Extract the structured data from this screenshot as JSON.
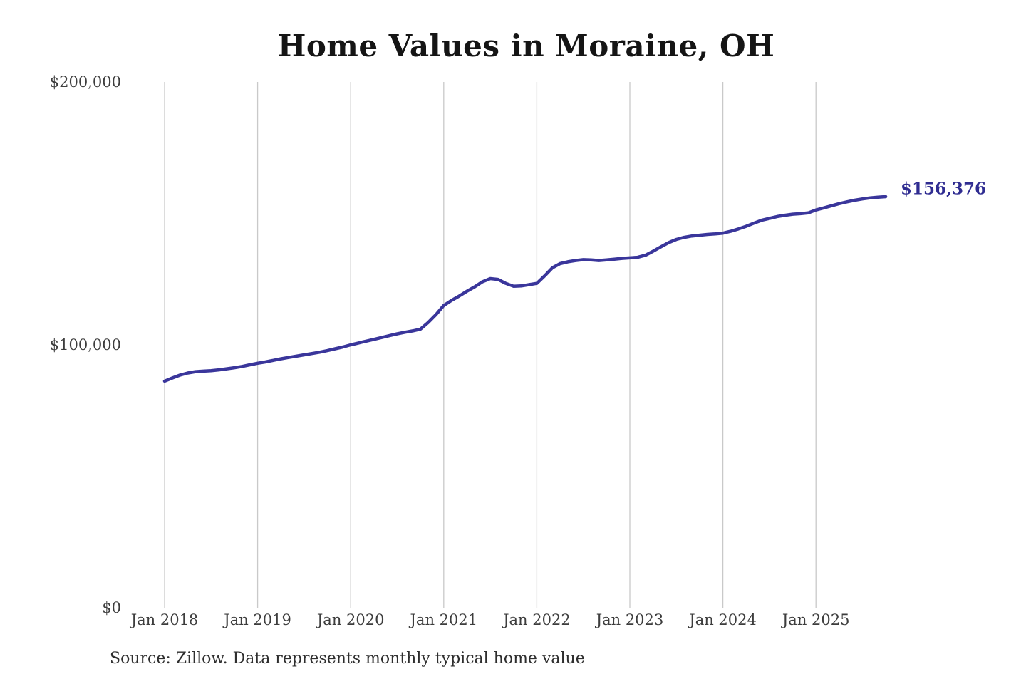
{
  "title": "Home Values in Moraine, OH",
  "source_note": "Source: Zillow. Data represents monthly typical home value",
  "end_label": "$156,376",
  "colors": {
    "line": "#3a369b",
    "end_label": "#2f2c91",
    "gridline": "#c9c9c9",
    "title": "#151515",
    "axis_text": "#3d3d3d",
    "background": "#ffffff"
  },
  "chart_data": {
    "type": "line",
    "title": "Home Values in Moraine, OH",
    "series_name": "Monthly typical home value",
    "frequency": "monthly",
    "x_start": "Jan 2018",
    "x_end": "Oct 2025",
    "x_tick_labels": [
      "Jan 2018",
      "Jan 2019",
      "Jan 2020",
      "Jan 2021",
      "Jan 2022",
      "Jan 2023",
      "Jan 2024",
      "Jan 2025"
    ],
    "y_tick_labels": [
      "$0",
      "$100,000",
      "$200,000"
    ],
    "ylim": [
      0,
      200000
    ],
    "grid": "vertical-only",
    "legend": "none",
    "final_value": 156376,
    "values": [
      86200,
      87400,
      88500,
      89300,
      89800,
      90000,
      90200,
      90500,
      90900,
      91300,
      91800,
      92400,
      93000,
      93500,
      94100,
      94700,
      95200,
      95700,
      96200,
      96700,
      97200,
      97800,
      98500,
      99200,
      100000,
      100700,
      101400,
      102100,
      102800,
      103500,
      104200,
      104800,
      105300,
      106000,
      108500,
      111500,
      115000,
      116900,
      118600,
      120400,
      122100,
      124000,
      125200,
      124900,
      123400,
      122300,
      122400,
      122900,
      123400,
      126200,
      129300,
      130900,
      131600,
      132100,
      132400,
      132300,
      132100,
      132300,
      132600,
      132900,
      133100,
      133300,
      134100,
      135600,
      137300,
      138900,
      140100,
      140900,
      141400,
      141700,
      142000,
      142200,
      142500,
      143200,
      144100,
      145100,
      146300,
      147400,
      148100,
      148800,
      149300,
      149700,
      149900,
      150200,
      151300,
      152100,
      152900,
      153700,
      154400,
      155000,
      155500,
      155900,
      156150,
      156376
    ]
  }
}
